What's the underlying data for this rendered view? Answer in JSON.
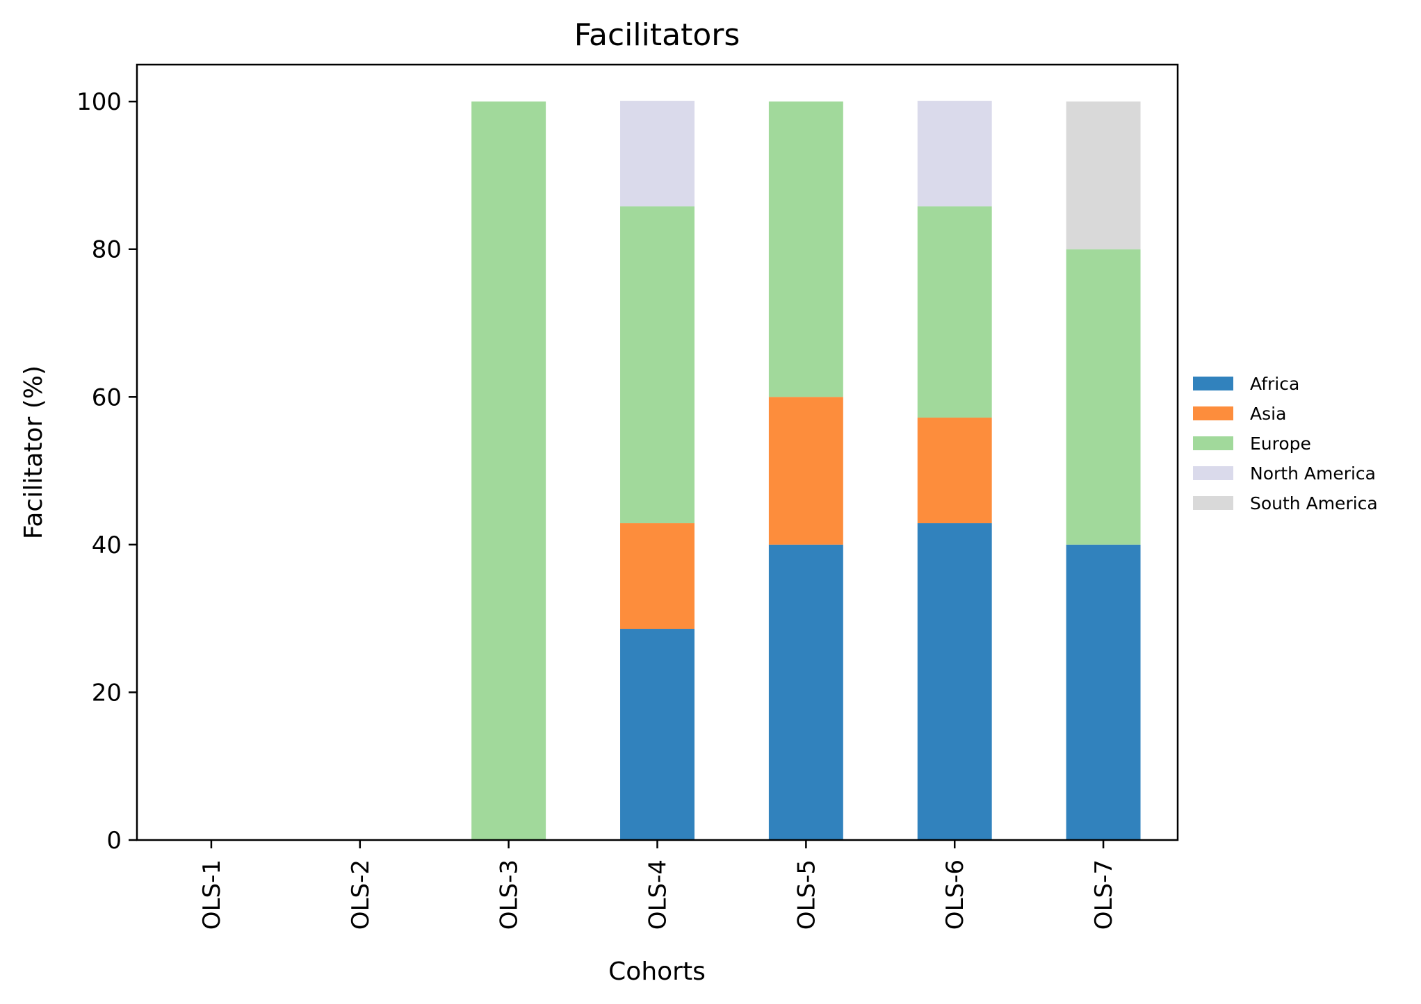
{
  "chart_data": {
    "type": "bar",
    "stacked": true,
    "title": "Facilitators",
    "xlabel": "Cohorts",
    "ylabel": "Facilitator (%)",
    "ylim": [
      0,
      105
    ],
    "yticks": [
      0,
      20,
      40,
      60,
      80,
      100
    ],
    "grid": false,
    "legend_position": "right",
    "categories": [
      "OLS-1",
      "OLS-2",
      "OLS-3",
      "OLS-4",
      "OLS-5",
      "OLS-6",
      "OLS-7"
    ],
    "series": [
      {
        "name": "Africa",
        "color": "#3182bd",
        "values": [
          0,
          0,
          0,
          28.6,
          40,
          42.9,
          40
        ]
      },
      {
        "name": "Asia",
        "color": "#fd8d3c",
        "values": [
          0,
          0,
          0,
          14.3,
          20,
          14.3,
          0
        ]
      },
      {
        "name": "Europe",
        "color": "#a1d99b",
        "values": [
          0,
          0,
          100,
          42.9,
          40,
          28.6,
          40
        ]
      },
      {
        "name": "North America",
        "color": "#dadaeb",
        "values": [
          0,
          0,
          0,
          14.3,
          0,
          14.3,
          0
        ]
      },
      {
        "name": "South America",
        "color": "#d9d9d9",
        "values": [
          0,
          0,
          0,
          0,
          0,
          0,
          20
        ]
      }
    ]
  }
}
